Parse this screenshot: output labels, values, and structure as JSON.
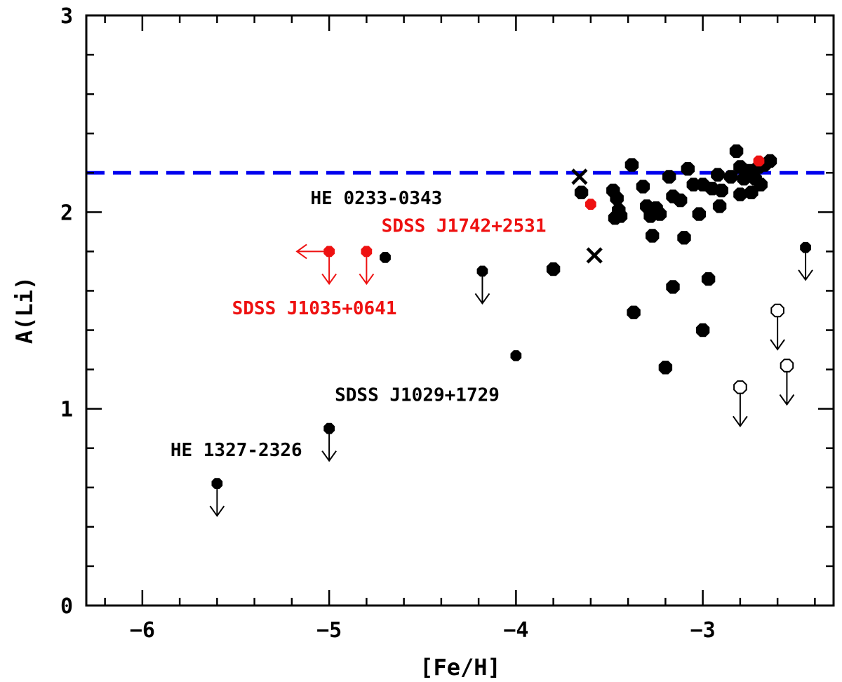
{
  "chart_data": {
    "type": "scatter",
    "xlabel": "[Fe/H]",
    "ylabel": "A(Li)",
    "xlim": [
      -6.3,
      -2.3
    ],
    "ylim": [
      0,
      3
    ],
    "x_ticks": [
      -6,
      -5,
      -4,
      -3
    ],
    "x_tick_labels": [
      "−6",
      "−5",
      "−4",
      "−3"
    ],
    "y_ticks": [
      0,
      1,
      2,
      3
    ],
    "y_tick_labels": [
      "0",
      "1",
      "2",
      "3"
    ],
    "reference_line": {
      "y": 2.2,
      "style": "dashed",
      "color": "#0000ee"
    },
    "colors": {
      "black": "#000000",
      "red": "#ee1111",
      "blue": "#0000ee"
    },
    "series": [
      {
        "marker": "filled-octagon-large",
        "color": "#000000",
        "points": [
          [
            -3.38,
            2.24
          ],
          [
            -3.32,
            2.13
          ],
          [
            -3.48,
            2.11
          ],
          [
            -3.46,
            2.07
          ],
          [
            -3.45,
            2.01
          ],
          [
            -3.47,
            1.97
          ],
          [
            -3.44,
            1.98
          ],
          [
            -3.3,
            2.03
          ],
          [
            -3.25,
            2.02
          ],
          [
            -3.23,
            1.99
          ],
          [
            -3.28,
            1.98
          ],
          [
            -3.27,
            1.88
          ],
          [
            -3.18,
            2.18
          ],
          [
            -3.16,
            2.08
          ],
          [
            -3.12,
            2.06
          ],
          [
            -3.08,
            2.22
          ],
          [
            -3.05,
            2.14
          ],
          [
            -3.1,
            1.87
          ],
          [
            -3.02,
            1.99
          ],
          [
            -3.0,
            2.14
          ],
          [
            -2.95,
            2.12
          ],
          [
            -2.92,
            2.19
          ],
          [
            -2.9,
            2.11
          ],
          [
            -2.91,
            2.03
          ],
          [
            -2.85,
            2.18
          ],
          [
            -2.82,
            2.31
          ],
          [
            -2.8,
            2.23
          ],
          [
            -2.78,
            2.17
          ],
          [
            -2.75,
            2.21
          ],
          [
            -2.72,
            2.17
          ],
          [
            -2.7,
            2.23
          ],
          [
            -2.67,
            2.24
          ],
          [
            -2.64,
            2.26
          ],
          [
            -2.69,
            2.14
          ],
          [
            -2.74,
            2.1
          ],
          [
            -2.8,
            2.09
          ],
          [
            -3.8,
            1.71
          ],
          [
            -3.37,
            1.49
          ],
          [
            -3.16,
            1.62
          ],
          [
            -3.2,
            1.21
          ],
          [
            -3.0,
            1.4
          ],
          [
            -2.97,
            1.66
          ],
          [
            -3.65,
            2.1
          ]
        ]
      },
      {
        "marker": "filled-circle-small",
        "color": "#000000",
        "points": [
          [
            -4.0,
            1.27
          ],
          [
            -4.7,
            1.77
          ]
        ]
      },
      {
        "marker": "filled-circle-small-upper-limit",
        "color": "#000000",
        "points": [
          [
            -4.18,
            1.7
          ],
          [
            -2.45,
            1.82
          ],
          [
            -5.0,
            0.9
          ],
          [
            -5.6,
            0.62
          ]
        ]
      },
      {
        "marker": "open-circle-upper-limit",
        "color": "#000000",
        "points": [
          [
            -2.6,
            1.5
          ],
          [
            -2.55,
            1.22
          ],
          [
            -2.8,
            1.11
          ]
        ]
      },
      {
        "marker": "cross",
        "color": "#000000",
        "points": [
          [
            -3.66,
            2.18
          ],
          [
            -3.58,
            1.78
          ]
        ]
      },
      {
        "marker": "filled-circle-small",
        "color": "#ee1111",
        "points": [
          [
            -3.6,
            2.04
          ],
          [
            -2.7,
            2.26
          ]
        ]
      },
      {
        "marker": "filled-circle-small-upper-limit",
        "color": "#ee1111",
        "points": [
          [
            -4.8,
            1.8
          ]
        ]
      },
      {
        "marker": "filled-circle-small-upper-and-left-limit",
        "color": "#ee1111",
        "points": [
          [
            -5.0,
            1.8
          ]
        ]
      }
    ],
    "annotations": [
      {
        "text": "HE 0233-0343",
        "color": "#000000",
        "x": -5.1,
        "y": 2.04
      },
      {
        "text": "SDSS J1742+2531",
        "color": "#ee1111",
        "x": -4.72,
        "y": 1.9
      },
      {
        "text": "SDSS J1035+0641",
        "color": "#ee1111",
        "x": -5.52,
        "y": 1.48
      },
      {
        "text": "SDSS J1029+1729",
        "color": "#000000",
        "x": -4.97,
        "y": 1.04
      },
      {
        "text": "HE 1327-2326",
        "color": "#000000",
        "x": -5.85,
        "y": 0.76
      }
    ]
  }
}
